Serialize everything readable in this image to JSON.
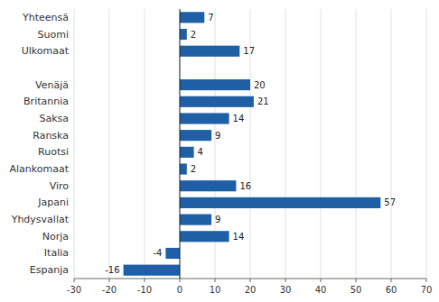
{
  "chart_data": {
    "type": "bar",
    "orientation": "horizontal",
    "categories": [
      "Yhteensä",
      "Suomi",
      "Ulkomaat",
      null,
      "Venäjä",
      "Britannia",
      "Saksa",
      "Ranska",
      "Ruotsi",
      "Alankomaat",
      "Viro",
      "Japani",
      "Yhdysvallat",
      "Norja",
      "Italia",
      "Espanja"
    ],
    "values": [
      7,
      2,
      17,
      null,
      20,
      21,
      14,
      9,
      4,
      2,
      16,
      57,
      9,
      14,
      -4,
      -16
    ],
    "color": "#1F5FA6",
    "xlim": [
      -30,
      70
    ],
    "xticks": [
      -30,
      -20,
      -10,
      0,
      10,
      20,
      30,
      40,
      50,
      60,
      70
    ],
    "grid": true,
    "data_labels": true
  }
}
